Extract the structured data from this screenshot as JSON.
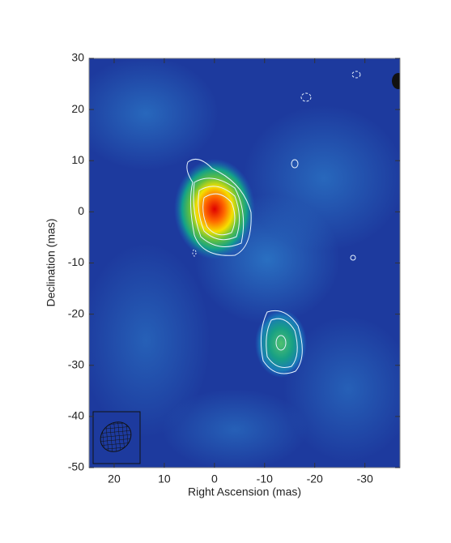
{
  "chart_data": {
    "type": "image",
    "xlabel": "Right Ascension (mas)",
    "ylabel": "Declination (mas)",
    "xlim": [
      25,
      -37
    ],
    "xticks": [
      20,
      10,
      0,
      -10,
      -20,
      -30
    ],
    "ylim": [
      -50,
      30
    ],
    "yticks": [
      30,
      20,
      10,
      0,
      -10,
      -20,
      -30,
      -40,
      -50
    ]
  }
}
